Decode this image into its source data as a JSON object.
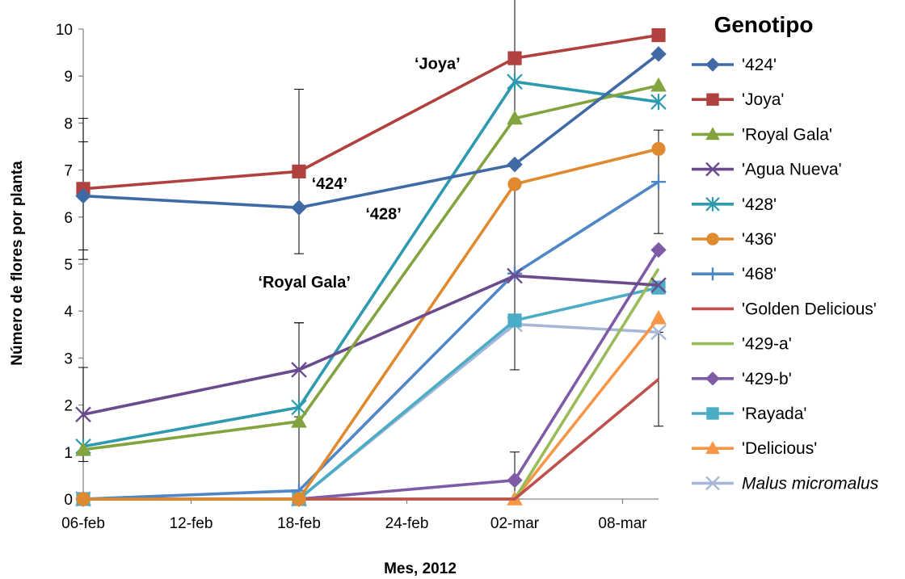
{
  "chart_data": {
    "type": "line",
    "xlabel": "Mes, 2012",
    "ylabel": "Número de flores por planta",
    "ylim": [
      0,
      10
    ],
    "y_ticks": [
      "0",
      "1",
      "2",
      "3",
      "4",
      "5",
      "6",
      "7",
      "8",
      "9",
      "10"
    ],
    "x_tick_labels": [
      "06-feb",
      "12-feb",
      "18-feb",
      "24-feb",
      "02-mar",
      "08-mar"
    ],
    "x_ticks": [
      0,
      6,
      12,
      18,
      24,
      30
    ],
    "x_range": [
      0,
      32
    ],
    "legend_title": "Genotipo",
    "legend_position": "right",
    "grid": false,
    "annotations": [
      {
        "text": "‘Joya’",
        "x": 19.7,
        "y": 9.15
      },
      {
        "text": "‘424’",
        "x": 13.7,
        "y": 6.6
      },
      {
        "text": "‘428’",
        "x": 16.7,
        "y": 5.95
      },
      {
        "text": "‘Royal Gala’",
        "x": 12.3,
        "y": 4.5
      }
    ],
    "series": [
      {
        "name": "'424'",
        "color": "#3f6aa5",
        "marker": "diamond",
        "x": [
          0,
          12,
          24,
          32
        ],
        "y": [
          6.45,
          6.2,
          7.12,
          9.47
        ],
        "err": [
          1.15,
          0,
          0,
          0
        ]
      },
      {
        "name": "'Joya'",
        "color": "#b0413e",
        "marker": "square",
        "x": [
          0,
          12,
          24,
          32
        ],
        "y": [
          6.6,
          6.97,
          9.38,
          9.87
        ],
        "err": [
          1.5,
          1.75,
          1.3,
          0
        ]
      },
      {
        "name": "'Royal  Gala'",
        "color": "#82a33e",
        "marker": "triangle",
        "x": [
          0,
          12,
          24,
          32
        ],
        "y": [
          1.05,
          1.65,
          8.1,
          8.8
        ],
        "err": [
          0,
          2.1,
          0,
          0
        ]
      },
      {
        "name": "'Agua Nueva'",
        "color": "#6a4b8e",
        "marker": "x",
        "x": [
          0,
          12,
          24,
          32
        ],
        "y": [
          1.8,
          2.75,
          4.75,
          4.55
        ],
        "err": [
          1.0,
          1.0,
          2.0,
          0
        ]
      },
      {
        "name": "'428'",
        "color": "#2e9aaf",
        "marker": "star",
        "x": [
          0,
          12,
          24,
          32
        ],
        "y": [
          1.12,
          1.95,
          8.88,
          8.45
        ],
        "err": [
          0,
          0,
          0,
          0
        ]
      },
      {
        "name": "'436'",
        "color": "#e08a2f",
        "marker": "circle",
        "x": [
          0,
          12,
          24,
          32
        ],
        "y": [
          0,
          0,
          6.7,
          7.45
        ],
        "err": [
          0,
          0,
          0,
          0
        ]
      },
      {
        "name": "'468'",
        "color": "#4f86c6",
        "marker": "plus",
        "x": [
          0,
          12,
          24,
          32
        ],
        "y": [
          0,
          0.18,
          4.8,
          6.75
        ],
        "err": [
          0,
          0,
          0,
          1.1
        ]
      },
      {
        "name": "'Golden Delicious'",
        "color": "#c0504d",
        "marker": "none",
        "x": [
          0,
          12,
          24,
          32
        ],
        "y": [
          0,
          0,
          0,
          2.55
        ],
        "err": [
          0,
          0,
          0,
          1.0
        ]
      },
      {
        "name": "'429-a'",
        "color": "#9bbb59",
        "marker": "none",
        "x": [
          0,
          12,
          24,
          32
        ],
        "y": [
          0,
          0,
          0,
          4.9
        ],
        "err": [
          0,
          0,
          0,
          0
        ]
      },
      {
        "name": "'429-b'",
        "color": "#7d5ba6",
        "marker": "diamond",
        "x": [
          0,
          12,
          24,
          32
        ],
        "y": [
          0,
          0,
          0.4,
          5.3
        ],
        "err": [
          0,
          0,
          0.6,
          0
        ]
      },
      {
        "name": "'Rayada'",
        "color": "#4bacc6",
        "marker": "square",
        "x": [
          0,
          12,
          24,
          32
        ],
        "y": [
          0,
          0,
          3.8,
          4.5
        ],
        "err": [
          0,
          0,
          0,
          0
        ]
      },
      {
        "name": " 'Delicious'",
        "color": "#f79646",
        "marker": "triangle",
        "x": [
          0,
          12,
          24,
          32
        ],
        "y": [
          0,
          0,
          0,
          3.85
        ],
        "err": [
          0,
          0,
          0,
          0
        ]
      },
      {
        "name": "Malus micromalus",
        "italic": true,
        "color": "#a6b7d7",
        "marker": "x",
        "x": [
          0,
          12,
          24,
          32
        ],
        "y": [
          0,
          0,
          3.72,
          3.55
        ],
        "err": [
          0,
          0,
          0,
          0
        ]
      }
    ]
  }
}
